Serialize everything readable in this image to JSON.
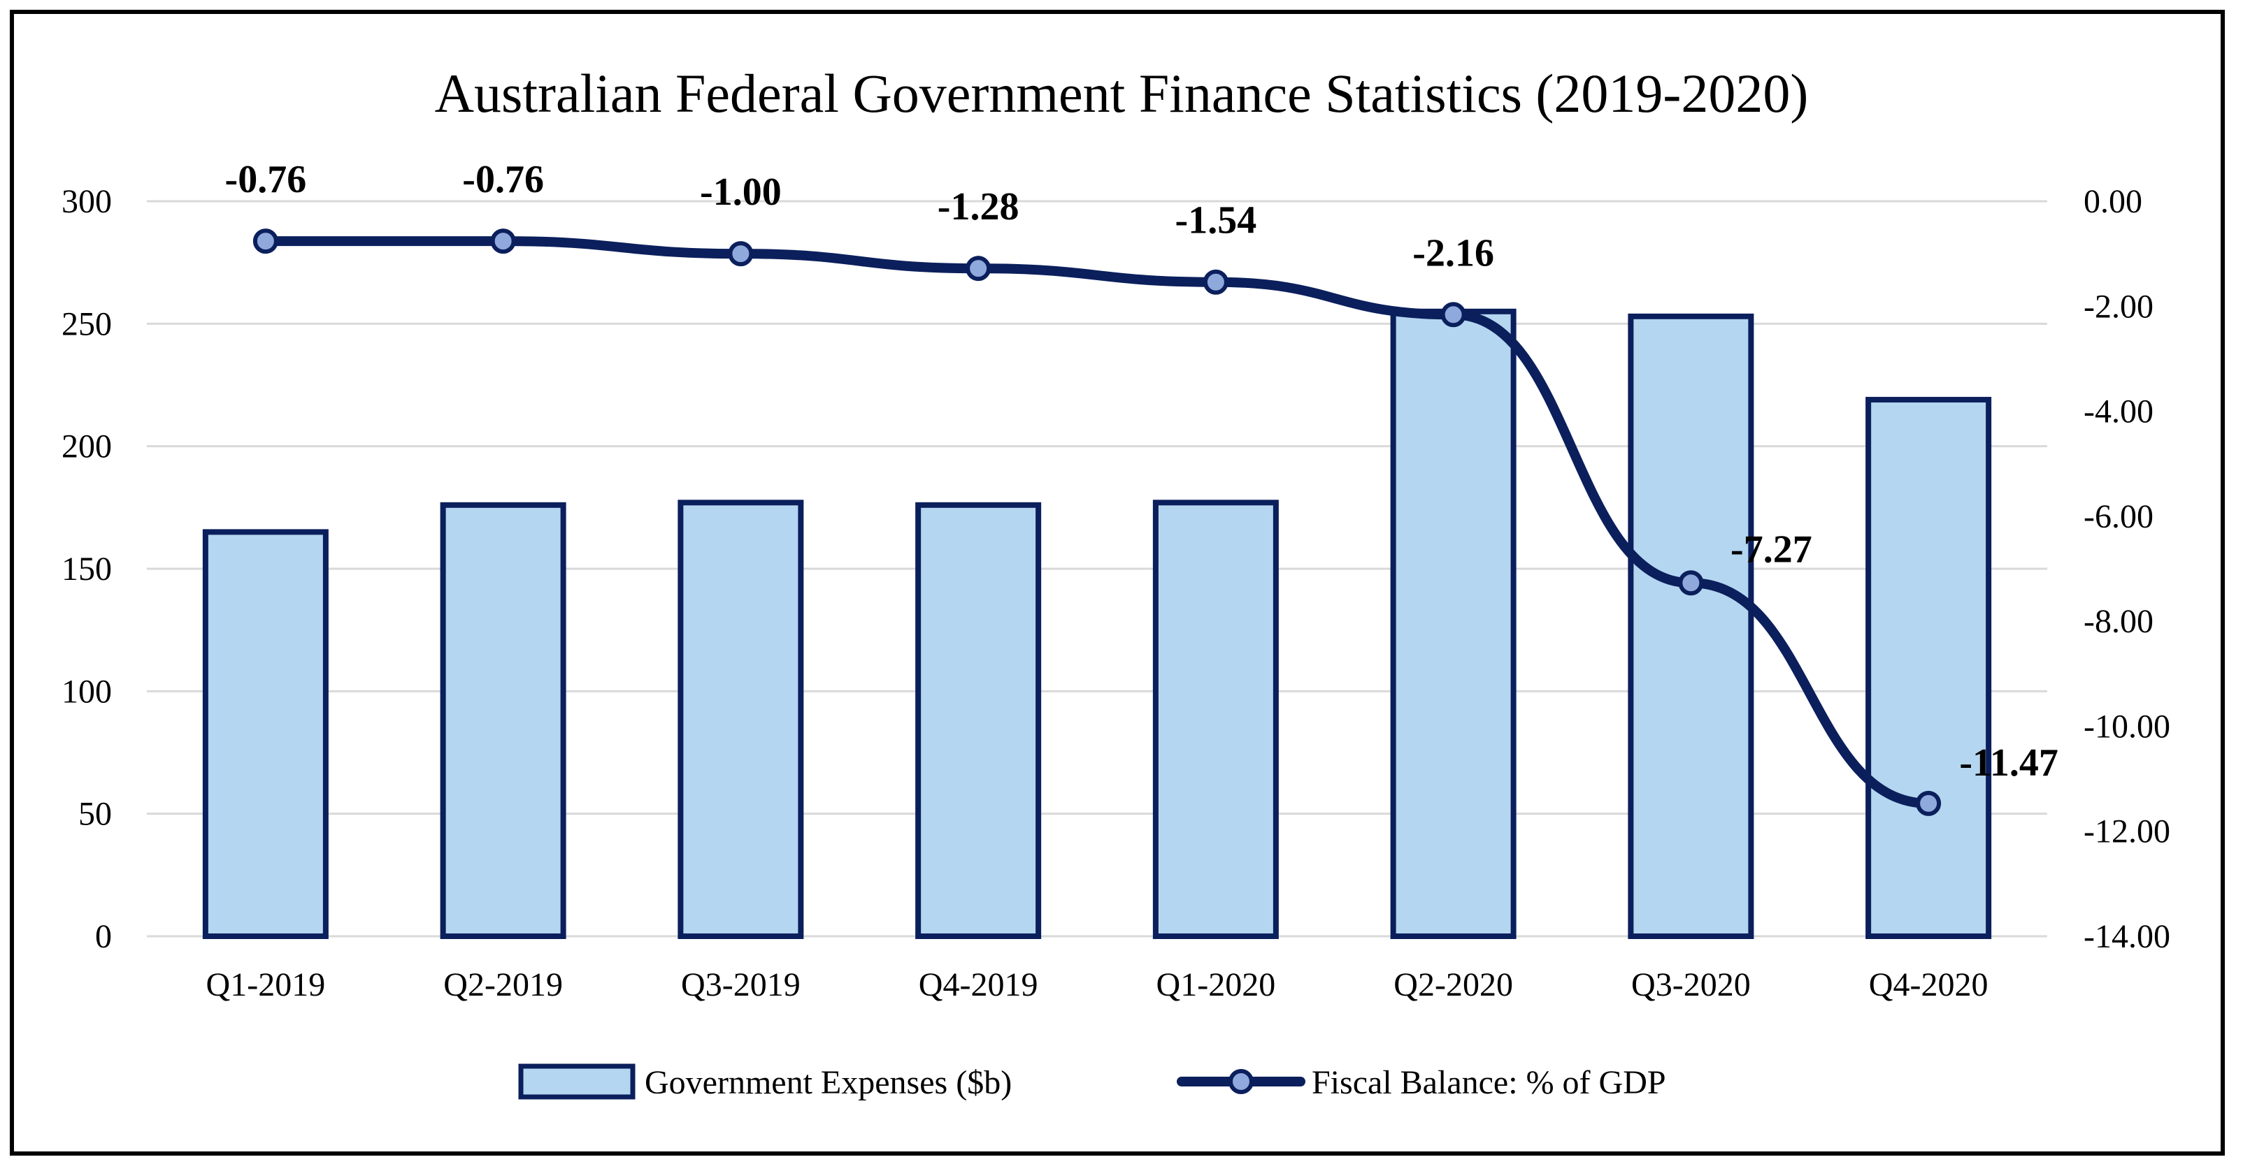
{
  "chart_data": {
    "type": "bar+line",
    "title": "Australian Federal Government Finance Statistics (2019-2020)",
    "categories": [
      "Q1-2019",
      "Q2-2019",
      "Q3-2019",
      "Q4-2019",
      "Q1-2020",
      "Q2-2020",
      "Q3-2020",
      "Q4-2020"
    ],
    "series": [
      {
        "name": "Government Expenses ($b)",
        "kind": "bar",
        "axis": "left",
        "values": [
          165,
          176,
          177,
          176,
          177,
          255,
          253,
          219
        ],
        "color": "#b4d6f0"
      },
      {
        "name": "Fiscal Balance: % of GDP",
        "kind": "line",
        "axis": "right",
        "values": [
          -0.76,
          -0.76,
          -1.0,
          -1.28,
          -1.54,
          -2.16,
          -7.27,
          -11.47
        ],
        "labels": [
          "-0.76",
          "-0.76",
          "-1.00",
          "-1.28",
          "-1.54",
          "-2.16",
          "-7.27",
          "-11.47"
        ],
        "color": "#0b1f5c",
        "marker_color": "#8fa9dc"
      }
    ],
    "y_left": {
      "min": 0,
      "max": 300,
      "ticks": [
        "0",
        "50",
        "100",
        "150",
        "200",
        "250",
        "300"
      ]
    },
    "y_right": {
      "min": -14,
      "max": 0,
      "ticks": [
        "0.00",
        "-2.00",
        "-4.00",
        "-6.00",
        "-8.00",
        "-10.00",
        "-12.00",
        "-14.00"
      ]
    },
    "grid": true,
    "legend": "bottom",
    "bar_edge_color": "#0b1f5c",
    "grid_color": "#d9d9d9"
  }
}
